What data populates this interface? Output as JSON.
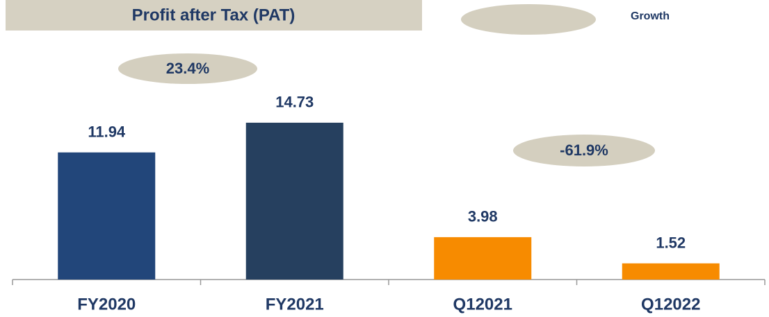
{
  "chart_data": {
    "type": "bar",
    "title": "Profit after Tax (PAT)",
    "legend_label": "Growth",
    "annotations": [
      "23.4%",
      "-61.9%"
    ],
    "categories": [
      "FY2020",
      "FY2021",
      "Q12021",
      "Q12022"
    ],
    "values": [
      11.94,
      14.73,
      3.98,
      1.52
    ],
    "colors": [
      "#22467a",
      "#26405f",
      "#f78b00",
      "#f78b00"
    ]
  }
}
